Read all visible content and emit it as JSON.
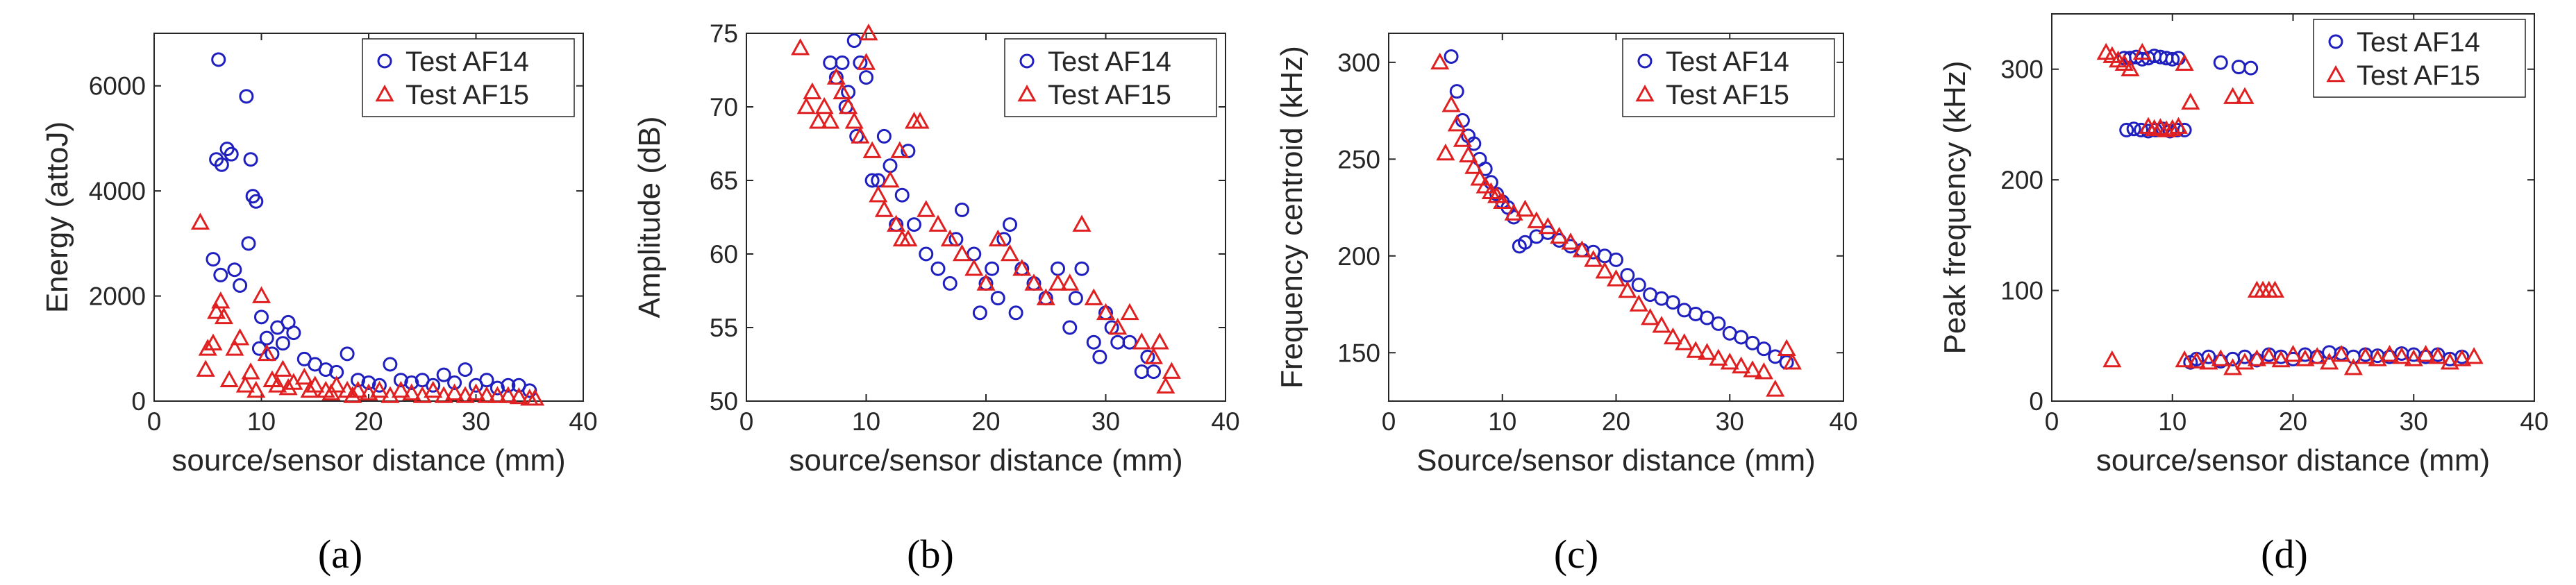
{
  "colors": {
    "af14": "#1f1fbf",
    "af15": "#e02020",
    "axis": "#262626"
  },
  "chart_data": [
    {
      "type": "scatter",
      "caption": "(a)",
      "xlabel": "source/sensor distance (mm)",
      "ylabel": "Energy (attoJ)",
      "xlim": [
        0,
        40
      ],
      "ylim": [
        0,
        7000
      ],
      "xticks": [
        0,
        10,
        20,
        30,
        40
      ],
      "yticks": [
        0,
        2000,
        4000,
        6000
      ],
      "xtick_labels": [
        "0",
        "10",
        "20",
        "30",
        "40"
      ],
      "ytick_labels": [
        "0",
        "2000",
        "4000",
        "6000"
      ],
      "legend": [
        "Test AF14",
        "Test AF15"
      ],
      "series": [
        {
          "name": "Test AF14",
          "marker": "circle",
          "x": [
            6,
            6.3,
            6.8,
            7.2,
            5.5,
            5.8,
            6.2,
            8.6,
            9,
            9.2,
            8.8,
            9.5,
            7.5,
            10,
            10.5,
            11,
            11.5,
            12,
            12.5,
            13,
            14,
            15,
            16,
            17,
            18,
            19,
            20,
            21,
            22,
            23,
            24,
            25,
            26,
            27,
            28,
            29,
            30,
            31,
            32,
            33,
            34,
            35,
            8,
            9.8
          ],
          "y": [
            6500,
            4500,
            4800,
            4700,
            2700,
            4600,
            2400,
            5800,
            4600,
            3900,
            3000,
            3800,
            2500,
            1600,
            1200,
            900,
            1400,
            1100,
            1500,
            1300,
            800,
            700,
            600,
            550,
            900,
            400,
            350,
            300,
            700,
            400,
            350,
            400,
            300,
            500,
            350,
            600,
            300,
            400,
            250,
            300,
            300,
            200,
            2200,
            1000
          ]
        },
        {
          "name": "Test AF15",
          "marker": "triangle",
          "x": [
            4.3,
            5,
            5.5,
            5.8,
            6.2,
            6.5,
            7,
            7.5,
            8,
            8.5,
            9,
            9.5,
            10,
            10.5,
            11,
            12,
            13,
            14,
            15,
            16,
            17,
            18,
            19,
            20,
            21,
            22,
            23,
            24,
            25,
            26,
            27,
            28,
            29,
            30,
            31,
            32,
            33,
            34,
            35,
            35.5,
            4.8,
            11.5,
            12.5,
            14.5,
            16.5,
            18.5
          ],
          "y": [
            3400,
            1000,
            1100,
            1700,
            1900,
            1600,
            400,
            1000,
            1200,
            300,
            550,
            200,
            2000,
            900,
            400,
            600,
            350,
            450,
            300,
            200,
            300,
            200,
            200,
            150,
            200,
            100,
            200,
            150,
            100,
            200,
            100,
            150,
            100,
            150,
            100,
            100,
            100,
            80,
            50,
            50,
            600,
            300,
            250,
            200,
            150,
            100
          ]
        }
      ]
    },
    {
      "type": "scatter",
      "caption": "(b)",
      "xlabel": "source/sensor distance (mm)",
      "ylabel": "Amplitude (dB)",
      "xlim": [
        0,
        40
      ],
      "ylim": [
        50,
        75
      ],
      "xticks": [
        0,
        10,
        20,
        30,
        40
      ],
      "yticks": [
        50,
        55,
        60,
        65,
        70,
        75
      ],
      "xtick_labels": [
        "0",
        "10",
        "20",
        "30",
        "40"
      ],
      "ytick_labels": [
        "50",
        "55",
        "60",
        "65",
        "70",
        "75"
      ],
      "legend": [
        "Test AF14",
        "Test AF15"
      ],
      "series": [
        {
          "name": "Test AF14",
          "marker": "circle",
          "x": [
            7.5,
            8,
            8.5,
            9,
            9.5,
            10,
            10.5,
            11,
            11.5,
            12,
            12.5,
            13,
            13.5,
            14,
            15,
            16,
            17,
            17.5,
            18,
            19,
            19.5,
            20,
            20.5,
            21,
            21.5,
            22,
            22.5,
            23,
            24,
            25,
            26,
            27,
            27.5,
            28,
            29,
            29.5,
            30,
            30.5,
            31,
            32,
            33,
            33.5,
            34,
            7,
            9.2,
            8.3
          ],
          "y": [
            72,
            73,
            71,
            74.5,
            73,
            72,
            65,
            65,
            68,
            66,
            62,
            64,
            67,
            62,
            60,
            59,
            58,
            61,
            63,
            60,
            56,
            58,
            59,
            57,
            61,
            62,
            56,
            59,
            58,
            57,
            59,
            55,
            57,
            59,
            54,
            53,
            56,
            55,
            54,
            54,
            52,
            53,
            52,
            73,
            68,
            70
          ]
        },
        {
          "name": "Test AF15",
          "marker": "triangle",
          "x": [
            4.5,
            5,
            5.5,
            6,
            6.5,
            7,
            7.5,
            8,
            8.5,
            9,
            9.5,
            10,
            10.5,
            11,
            11.5,
            12,
            12.5,
            13,
            13.5,
            14,
            14.5,
            15,
            16,
            17,
            18,
            19,
            20,
            21,
            22,
            23,
            24,
            25,
            26,
            27,
            28,
            29,
            30,
            31,
            32,
            33,
            34,
            34.5,
            35,
            35.5,
            10.2,
            12.8
          ],
          "y": [
            74,
            70,
            71,
            69,
            70,
            69,
            72,
            71,
            70,
            69,
            68,
            73,
            67,
            64,
            63,
            65,
            62,
            61,
            61,
            69,
            69,
            63,
            62,
            61,
            60,
            59,
            58,
            61,
            60,
            59,
            58,
            57,
            58,
            58,
            62,
            57,
            56,
            55,
            56,
            54,
            53,
            54,
            51,
            52,
            75,
            67
          ]
        }
      ]
    },
    {
      "type": "scatter",
      "caption": "(c)",
      "xlabel": "Source/sensor distance (mm)",
      "ylabel": "Frequency centroid (kHz)",
      "xlim": [
        0,
        40
      ],
      "ylim": [
        125,
        315
      ],
      "xticks": [
        0,
        10,
        20,
        30,
        40
      ],
      "yticks": [
        150,
        200,
        250,
        300
      ],
      "xtick_labels": [
        "0",
        "10",
        "20",
        "30",
        "40"
      ],
      "ytick_labels": [
        "150",
        "200",
        "250",
        "300"
      ],
      "legend": [
        "Test AF14",
        "Test AF15"
      ],
      "series": [
        {
          "name": "Test AF14",
          "marker": "circle",
          "x": [
            5.5,
            6,
            6.5,
            7,
            7.5,
            8,
            8.5,
            9,
            9.5,
            10,
            10.5,
            11,
            11.5,
            12,
            13,
            14,
            15,
            16,
            17,
            18,
            19,
            20,
            21,
            22,
            23,
            24,
            25,
            26,
            27,
            28,
            29,
            30,
            31,
            32,
            33,
            34,
            35
          ],
          "y": [
            303,
            285,
            270,
            262,
            258,
            250,
            245,
            238,
            232,
            228,
            225,
            220,
            205,
            207,
            210,
            212,
            208,
            205,
            203,
            202,
            200,
            198,
            190,
            185,
            180,
            178,
            176,
            172,
            170,
            168,
            165,
            160,
            158,
            155,
            152,
            148,
            145
          ]
        },
        {
          "name": "Test AF15",
          "marker": "triangle",
          "x": [
            4.5,
            5,
            5.5,
            6,
            6.5,
            7,
            7.5,
            8,
            8.5,
            9,
            9.5,
            10,
            11,
            12,
            13,
            14,
            15,
            16,
            17,
            18,
            19,
            20,
            21,
            22,
            23,
            24,
            25,
            26,
            27,
            28,
            29,
            30,
            31,
            32,
            33,
            34,
            35,
            35.5
          ],
          "y": [
            300,
            253,
            278,
            268,
            260,
            252,
            246,
            240,
            236,
            233,
            231,
            228,
            222,
            224,
            218,
            215,
            210,
            207,
            203,
            198,
            192,
            188,
            182,
            175,
            168,
            164,
            158,
            155,
            151,
            150,
            147,
            145,
            143,
            141,
            140,
            131,
            152,
            145
          ]
        }
      ]
    },
    {
      "type": "scatter",
      "caption": "(d)",
      "xlabel": "source/sensor distance (mm)",
      "ylabel": "Peak frequency (kHz)",
      "xlim": [
        0,
        40
      ],
      "ylim": [
        0,
        350
      ],
      "xticks": [
        0,
        10,
        20,
        30,
        40
      ],
      "yticks": [
        0,
        100,
        200,
        300
      ],
      "xtick_labels": [
        "0",
        "10",
        "20",
        "30",
        "40"
      ],
      "ytick_labels": [
        "0",
        "100",
        "200",
        "300"
      ],
      "legend": [
        "Test AF14",
        "Test AF15"
      ],
      "series": [
        {
          "name": "Test AF14",
          "marker": "circle",
          "x": [
            6,
            6.5,
            7,
            7.5,
            8,
            8.5,
            9,
            9.5,
            10,
            10.5,
            6.2,
            6.8,
            7.4,
            8,
            8.6,
            9.2,
            9.8,
            10.4,
            11,
            14,
            15.5,
            16.5,
            11.5,
            12,
            13,
            14,
            15,
            16,
            17,
            18,
            19,
            20,
            21,
            22,
            23,
            24,
            25,
            26,
            27,
            28,
            29,
            30,
            31,
            32,
            33,
            34
          ],
          "y": [
            310,
            310,
            311,
            309,
            310,
            312,
            311,
            310,
            309,
            310,
            245,
            246,
            245,
            244,
            245,
            246,
            244,
            245,
            245,
            306,
            302,
            301,
            35,
            38,
            40,
            36,
            38,
            40,
            37,
            42,
            40,
            38,
            42,
            40,
            44,
            43,
            40,
            42,
            41,
            40,
            43,
            42,
            40,
            42,
            38,
            40
          ]
        },
        {
          "name": "Test AF15",
          "marker": "triangle",
          "x": [
            4.5,
            5,
            5.5,
            6,
            6.5,
            7.5,
            8,
            8.5,
            9,
            9.5,
            10,
            10.5,
            11,
            11.5,
            15,
            16,
            17,
            17.5,
            18,
            18.5,
            5,
            11,
            12,
            13,
            14,
            15,
            16,
            17,
            18,
            19,
            20,
            21,
            22,
            23,
            24,
            25,
            26,
            27,
            28,
            29,
            30,
            31,
            32,
            33,
            34,
            35
          ],
          "y": [
            315,
            312,
            308,
            305,
            300,
            315,
            248,
            246,
            247,
            245,
            246,
            248,
            305,
            270,
            275,
            275,
            100,
            100,
            100,
            100,
            37,
            37,
            36,
            35,
            38,
            30,
            35,
            38,
            40,
            37,
            42,
            38,
            40,
            35,
            42,
            30,
            40,
            38,
            42,
            40,
            38,
            42,
            40,
            35,
            38,
            40
          ]
        }
      ]
    }
  ]
}
